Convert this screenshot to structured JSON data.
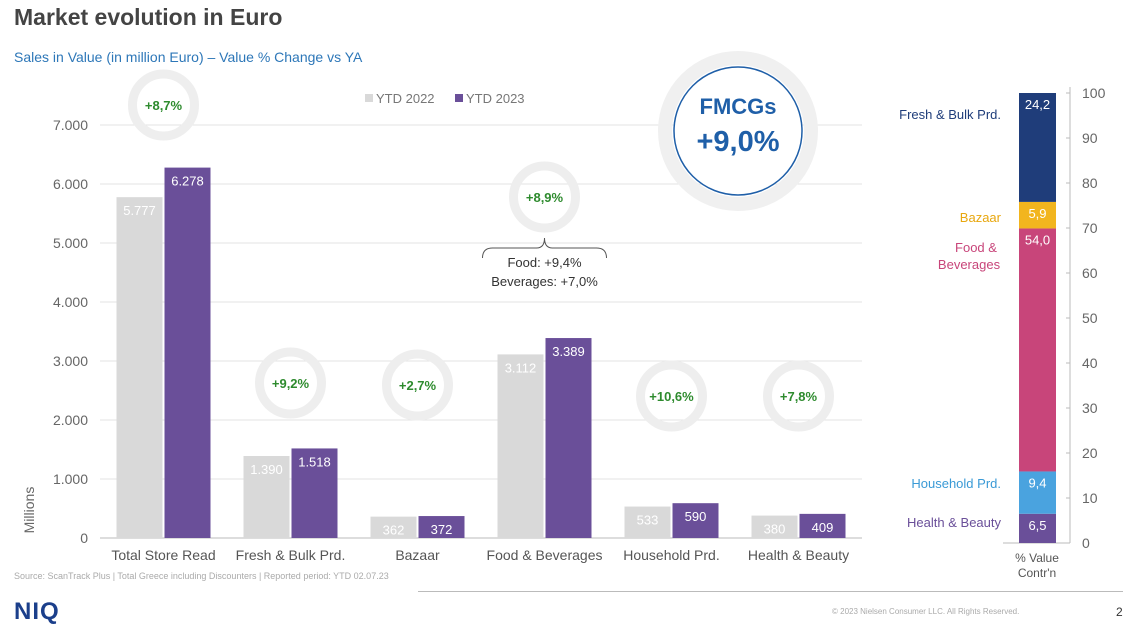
{
  "title": "Market evolution in Euro",
  "subtitle": "Sales in Value (in million Euro) – Value % Change vs YA",
  "source": "Source: ScanTrack Plus | Total Greece including Discounters |  Reported period: YTD 02.07.23",
  "copyright": "© 2023 Nielsen Consumer LLC. All Rights Reserved.",
  "page_number": "2",
  "logo_text": "NIQ",
  "fmcg": {
    "label": "FMCGs",
    "value": "+9,0%"
  },
  "food_note": [
    "Food: +9,4%",
    "Beverages: +7,0%"
  ],
  "colors": {
    "ytd2022": "#d9d9d9",
    "ytd2023": "#6a4f99",
    "growth": "#2e8b2e",
    "circle": "#eeeeee",
    "fmcg": "#1f5fa8"
  },
  "chart_data": [
    {
      "type": "bar",
      "xlabel": "",
      "ylabel": "Millions",
      "ylim": [
        0,
        7000
      ],
      "yticks": [
        "0",
        "1.000",
        "2.000",
        "3.000",
        "4.000",
        "5.000",
        "6.000",
        "7.000"
      ],
      "legend_position": "top",
      "categories": [
        "Total Store Read",
        "Fresh & Bulk Prd.",
        "Bazaar",
        "Food & Beverages",
        "Household Prd.",
        "Health & Beauty"
      ],
      "series": [
        {
          "name": "YTD 2022",
          "values": [
            5777,
            1390,
            362,
            3112,
            533,
            380
          ],
          "labels": [
            "5.777",
            "1.390",
            "362",
            "3.112",
            "533",
            "380"
          ]
        },
        {
          "name": "YTD 2023",
          "values": [
            6278,
            1518,
            372,
            3389,
            590,
            409
          ],
          "labels": [
            "6.278",
            "1.518",
            "372",
            "3.389",
            "590",
            "409"
          ]
        }
      ],
      "growth": [
        "+8,7%",
        "+9,2%",
        "+2,7%",
        "+8,9%",
        "+10,6%",
        "+7,8%"
      ]
    },
    {
      "type": "bar",
      "stacked": true,
      "xlabel": "% Value Contr'n",
      "ylim": [
        0,
        100
      ],
      "yticks": [
        "0",
        "10",
        "20",
        "30",
        "40",
        "50",
        "60",
        "70",
        "80",
        "90",
        "100"
      ],
      "segments": [
        {
          "name": "Health & Beauty",
          "value": 6.5,
          "label": "6,5",
          "color": "#6a4f99"
        },
        {
          "name": "Household Prd.",
          "value": 9.4,
          "label": "9,4",
          "color": "#4aa3df"
        },
        {
          "name": "Food & Beverages",
          "value": 54.0,
          "label": "54,0",
          "color": "#c8457a"
        },
        {
          "name": "Bazaar",
          "value": 5.9,
          "label": "5,9",
          "color": "#f2b51e"
        },
        {
          "name": "Fresh & Bulk Prd.",
          "value": 24.2,
          "label": "24,2",
          "color": "#1f3d7a"
        }
      ],
      "legend_colors": [
        "#6a4f99",
        "#3a9ad6",
        "#c8457a",
        "#e8a70e",
        "#1f3d7a"
      ]
    }
  ]
}
